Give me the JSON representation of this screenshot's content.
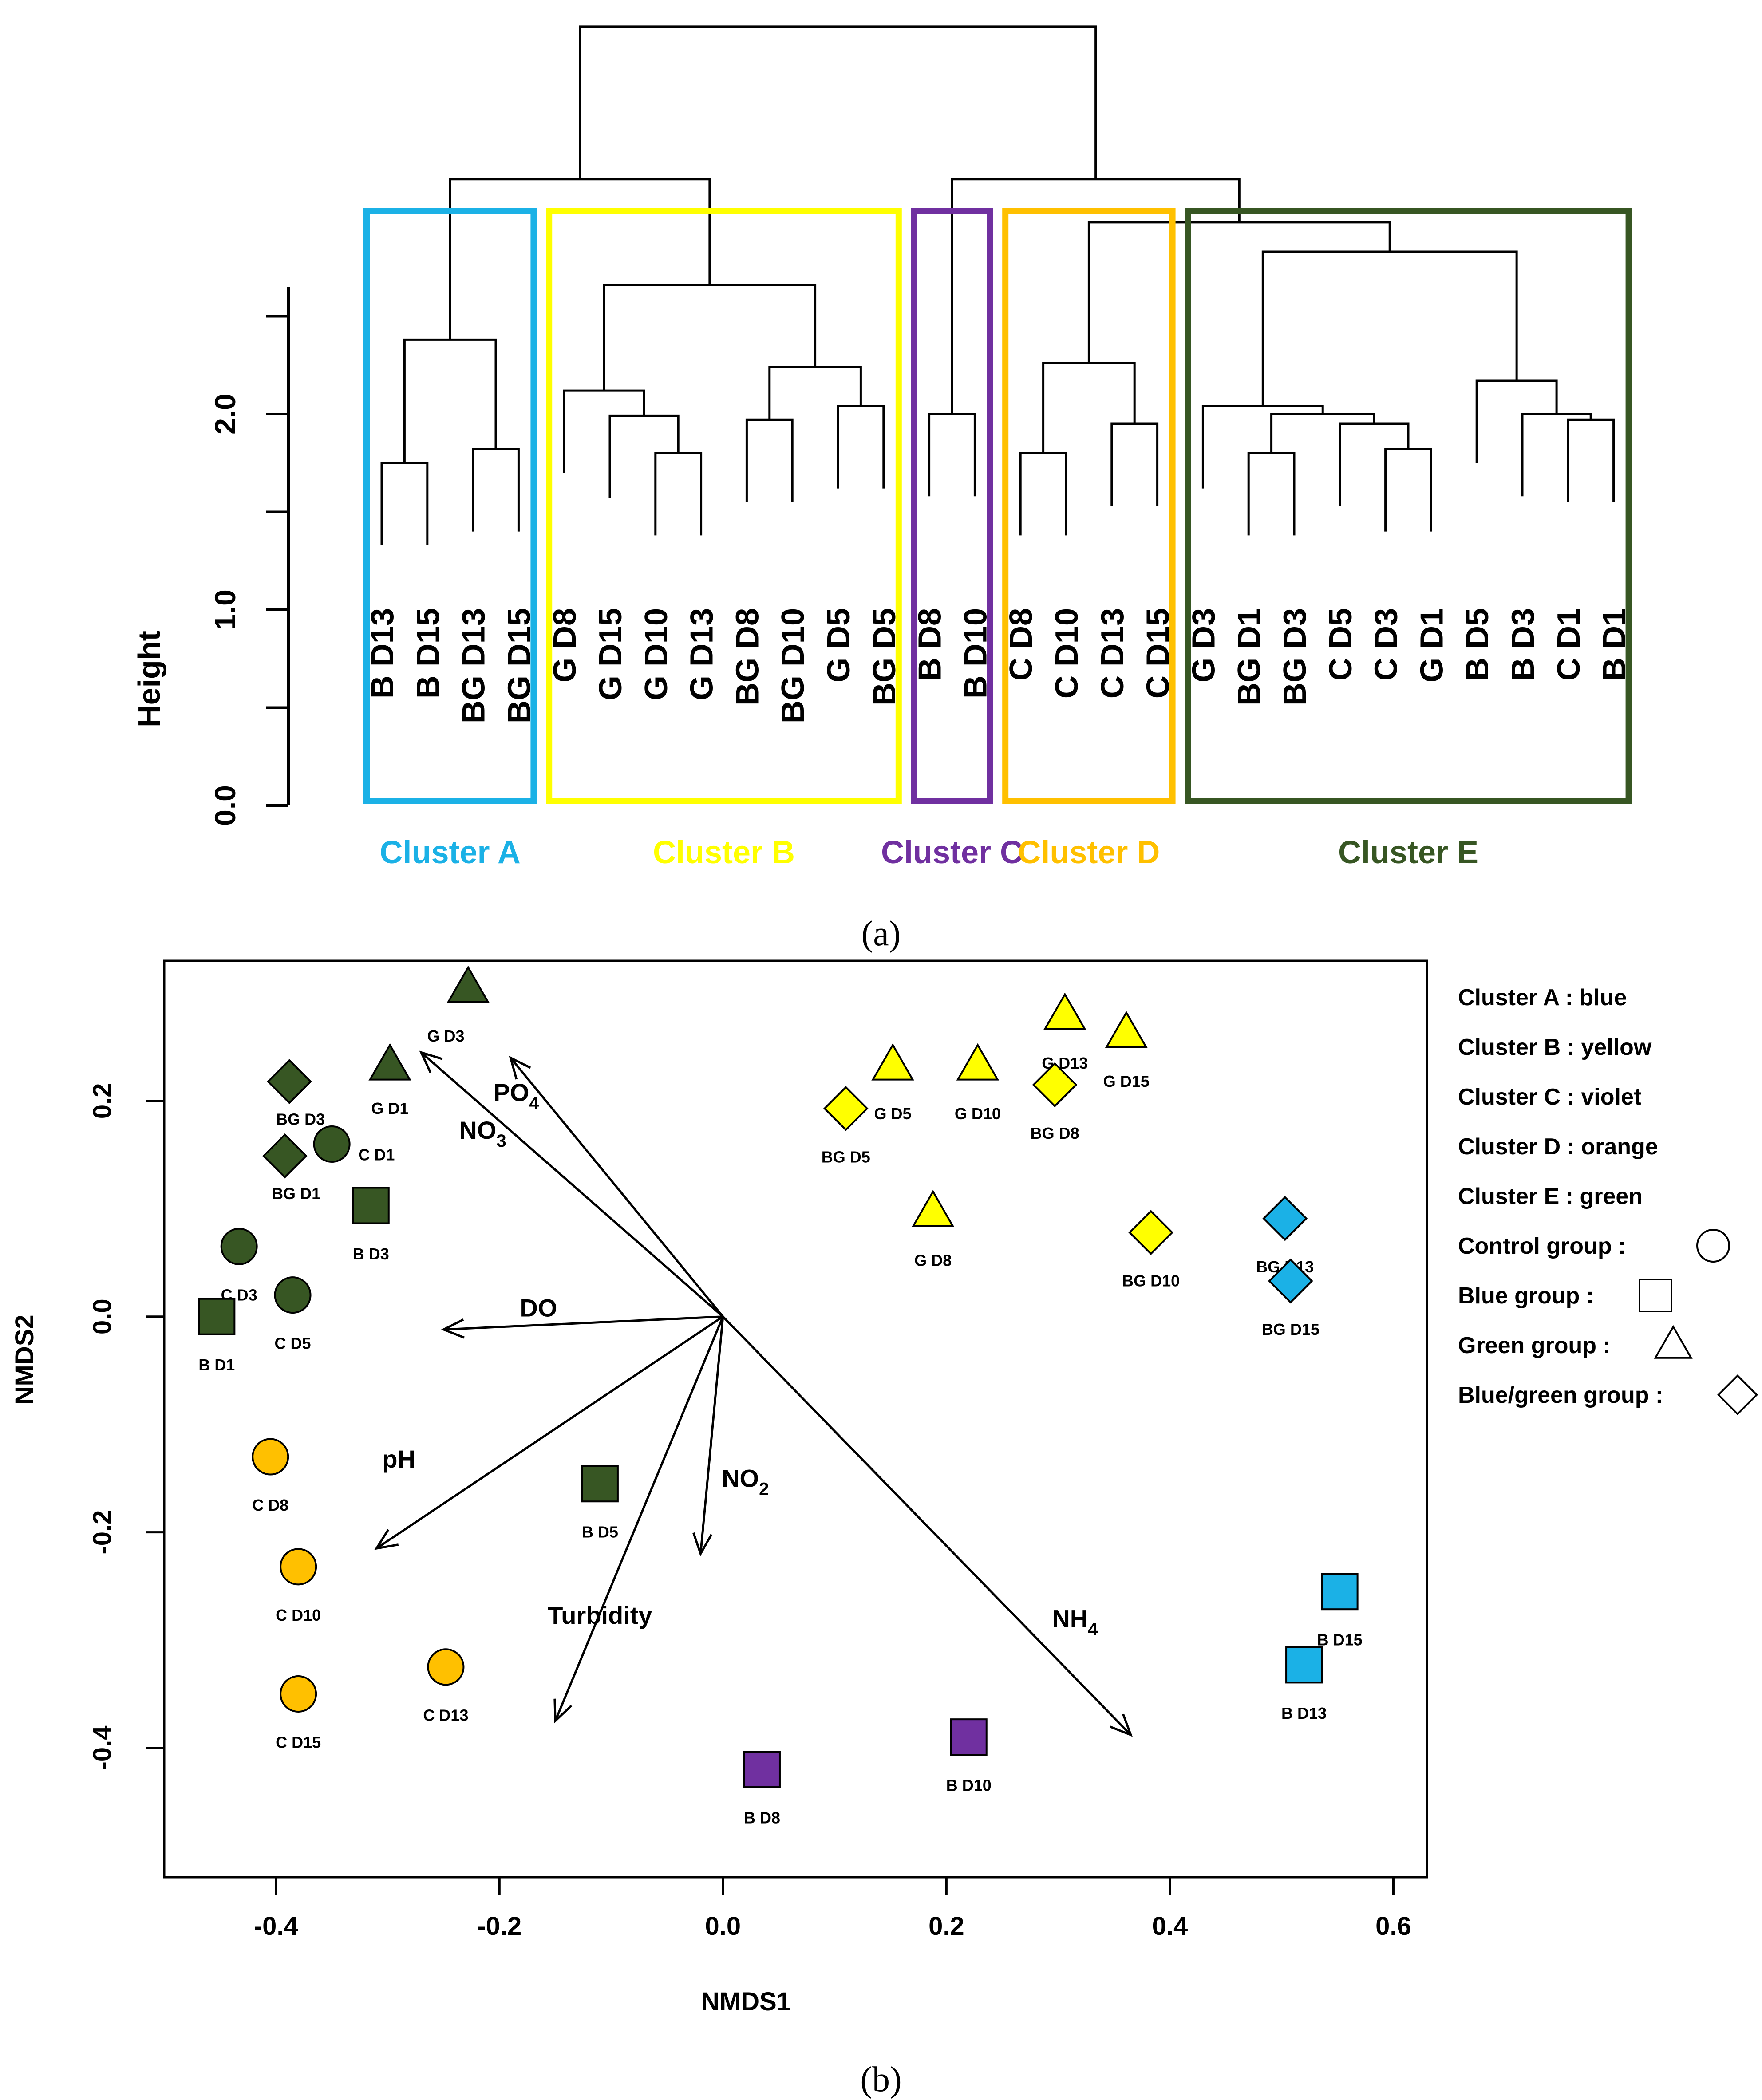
{
  "chart_data": [
    {
      "type": "dendrogram",
      "panel_caption": "(a)",
      "ylabel": "Height",
      "ylim": [
        0.0,
        2.7
      ],
      "yticks": [
        "0.0",
        "1.0",
        "2.0"
      ],
      "yticks_values": [
        0.0,
        1.0,
        2.0
      ],
      "leaves": [
        "B D13",
        "B D15",
        "BG D13",
        "BG D15",
        "G D8",
        "G D15",
        "G D10",
        "G D13",
        "BG D8",
        "BG D10",
        "G D5",
        "BG D5",
        "B D8",
        "B D10",
        "C D8",
        "C D10",
        "C D13",
        "C D15",
        "G D3",
        "BG D1",
        "BG D3",
        "C D5",
        "C D3",
        "G D1",
        "B D5",
        "B D3",
        "C D1",
        "B D1"
      ],
      "merges": [
        {
          "a": 0,
          "b": 1,
          "h": 1.75
        },
        {
          "a": 2,
          "b": 3,
          "h": 1.82
        },
        {
          "a": "n0",
          "b": "n1",
          "h": 2.38
        },
        {
          "a": 6,
          "b": 7,
          "h": 1.8
        },
        {
          "a": 5,
          "b": "n3",
          "h": 1.99
        },
        {
          "a": 4,
          "b": "n4",
          "h": 2.12
        },
        {
          "a": 8,
          "b": 9,
          "h": 1.97
        },
        {
          "a": 10,
          "b": 11,
          "h": 2.04
        },
        {
          "a": "n6",
          "b": "n7",
          "h": 2.24
        },
        {
          "a": "n5",
          "b": "n8",
          "h": 2.66
        },
        {
          "a": "n2",
          "b": "n9",
          "h": 3.2
        },
        {
          "a": 12,
          "b": 13,
          "h": 2.0
        },
        {
          "a": 14,
          "b": 15,
          "h": 1.8
        },
        {
          "a": 16,
          "b": 17,
          "h": 1.95
        },
        {
          "a": "n12",
          "b": "n13",
          "h": 2.26
        },
        {
          "a": 19,
          "b": 20,
          "h": 1.8
        },
        {
          "a": 22,
          "b": 23,
          "h": 1.82
        },
        {
          "a": 21,
          "b": "n16",
          "h": 1.95
        },
        {
          "a": "n15",
          "b": "n17",
          "h": 2.0
        },
        {
          "a": 18,
          "b": "n18",
          "h": 2.04
        },
        {
          "a": 26,
          "b": 27,
          "h": 1.97
        },
        {
          "a": 25,
          "b": "n20",
          "h": 2.0
        },
        {
          "a": 24,
          "b": "n21",
          "h": 2.17
        },
        {
          "a": "n19",
          "b": "n22",
          "h": 2.83
        },
        {
          "a": "n14",
          "b": "n23",
          "h": 2.98
        },
        {
          "a": "n24",
          "b": "n11",
          "h": 3.2
        },
        {
          "a": "n10",
          "b": "n25",
          "h": 3.98
        }
      ],
      "clusters": [
        {
          "label": "Cluster A",
          "color": "#1bb1e6",
          "from": 0,
          "to": 3
        },
        {
          "label": "Cluster B",
          "color": "#ffff00",
          "from": 4,
          "to": 11
        },
        {
          "label": "Cluster C",
          "color": "#7030a0",
          "from": 12,
          "to": 13
        },
        {
          "label": "Cluster D",
          "color": "#ffc000",
          "from": 14,
          "to": 17
        },
        {
          "label": "Cluster E",
          "color": "#375623",
          "from": 18,
          "to": 27
        }
      ]
    },
    {
      "type": "scatter",
      "panel_caption": "(b)",
      "xlabel": "NMDS1",
      "ylabel": "NMDS2",
      "xlim": [
        -0.5,
        0.63
      ],
      "ylim": [
        -0.52,
        0.33
      ],
      "xticks": [
        "-0.4",
        "-0.2",
        "0.0",
        "0.2",
        "0.4",
        "0.6"
      ],
      "xticks_values": [
        -0.4,
        -0.2,
        0.0,
        0.2,
        0.4,
        0.6
      ],
      "yticks": [
        "-0.4",
        "-0.2",
        "0.0",
        "0.2"
      ],
      "yticks_values": [
        -0.4,
        -0.2,
        0.0,
        0.2
      ],
      "points": [
        {
          "label": "G D3",
          "x": -0.228,
          "y": 0.305,
          "shape": "triangle",
          "color": "#375623"
        },
        {
          "label": "G D1",
          "x": -0.298,
          "y": 0.233,
          "shape": "triangle",
          "color": "#375623"
        },
        {
          "label": "BG D3",
          "x": -0.388,
          "y": 0.218,
          "shape": "diamond",
          "color": "#375623"
        },
        {
          "label": "BG D1",
          "x": -0.392,
          "y": 0.149,
          "shape": "diamond",
          "color": "#375623"
        },
        {
          "label": "C D1",
          "x": -0.35,
          "y": 0.16,
          "shape": "circle",
          "color": "#375623"
        },
        {
          "label": "B D3",
          "x": -0.315,
          "y": 0.103,
          "shape": "square",
          "color": "#375623"
        },
        {
          "label": "C D3",
          "x": -0.433,
          "y": 0.065,
          "shape": "circle",
          "color": "#375623"
        },
        {
          "label": "C D5",
          "x": -0.385,
          "y": 0.02,
          "shape": "circle",
          "color": "#375623"
        },
        {
          "label": "B D1",
          "x": -0.453,
          "y": 0.0,
          "shape": "square",
          "color": "#375623"
        },
        {
          "label": "B D5",
          "x": -0.11,
          "y": -0.155,
          "shape": "square",
          "color": "#375623"
        },
        {
          "label": "C D8",
          "x": -0.405,
          "y": -0.13,
          "shape": "circle",
          "color": "#ffc000"
        },
        {
          "label": "C D10",
          "x": -0.38,
          "y": -0.232,
          "shape": "circle",
          "color": "#ffc000"
        },
        {
          "label": "C D15",
          "x": -0.38,
          "y": -0.35,
          "shape": "circle",
          "color": "#ffc000"
        },
        {
          "label": "C D13",
          "x": -0.248,
          "y": -0.325,
          "shape": "circle",
          "color": "#ffc000"
        },
        {
          "label": "B D8",
          "x": 0.035,
          "y": -0.42,
          "shape": "square",
          "color": "#7030a0"
        },
        {
          "label": "B D10",
          "x": 0.22,
          "y": -0.39,
          "shape": "square",
          "color": "#7030a0"
        },
        {
          "label": "G D13",
          "x": 0.306,
          "y": 0.28,
          "shape": "triangle",
          "color": "#ffff00"
        },
        {
          "label": "G D15",
          "x": 0.361,
          "y": 0.263,
          "shape": "triangle",
          "color": "#ffff00"
        },
        {
          "label": "G D5",
          "x": 0.152,
          "y": 0.233,
          "shape": "triangle",
          "color": "#ffff00"
        },
        {
          "label": "G D10",
          "x": 0.228,
          "y": 0.233,
          "shape": "triangle",
          "color": "#ffff00"
        },
        {
          "label": "BG D8",
          "x": 0.297,
          "y": 0.215,
          "shape": "diamond",
          "color": "#ffff00"
        },
        {
          "label": "BG D5",
          "x": 0.11,
          "y": 0.193,
          "shape": "diamond",
          "color": "#ffff00"
        },
        {
          "label": "G D8",
          "x": 0.188,
          "y": 0.097,
          "shape": "triangle",
          "color": "#ffff00"
        },
        {
          "label": "BG D10",
          "x": 0.383,
          "y": 0.078,
          "shape": "diamond",
          "color": "#ffff00"
        },
        {
          "label": "BG D13",
          "x": 0.503,
          "y": 0.091,
          "shape": "diamond",
          "color": "#1bb1e6"
        },
        {
          "label": "BG D15",
          "x": 0.508,
          "y": 0.033,
          "shape": "diamond",
          "color": "#1bb1e6"
        },
        {
          "label": "B D15",
          "x": 0.552,
          "y": -0.255,
          "shape": "square",
          "color": "#1bb1e6"
        },
        {
          "label": "B D13",
          "x": 0.52,
          "y": -0.323,
          "shape": "square",
          "color": "#1bb1e6"
        }
      ],
      "vectors": [
        {
          "label": "PO",
          "sub": "4",
          "x": -0.19,
          "y": 0.24
        },
        {
          "label": "NO",
          "sub": "3",
          "x": -0.27,
          "y": 0.245
        },
        {
          "label": "DO",
          "sub": "",
          "x": -0.25,
          "y": -0.012
        },
        {
          "label": "pH",
          "sub": "",
          "x": -0.31,
          "y": -0.215
        },
        {
          "label": "NO",
          "sub": "2",
          "x": -0.02,
          "y": -0.22
        },
        {
          "label": "Turbidity",
          "sub": "",
          "x": -0.15,
          "y": -0.375
        },
        {
          "label": "NH",
          "sub": "4",
          "x": 0.365,
          "y": -0.388
        }
      ],
      "legend": {
        "clusters": [
          "Cluster A : blue",
          "Cluster B : yellow",
          "Cluster C : violet",
          "Cluster D : orange",
          "Cluster E : green"
        ],
        "groups": [
          {
            "label": "Control group :",
            "shape": "circle"
          },
          {
            "label": "Blue group :",
            "shape": "square"
          },
          {
            "label": "Green group :",
            "shape": "triangle"
          },
          {
            "label": "Blue/green group :",
            "shape": "diamond"
          }
        ]
      }
    }
  ]
}
